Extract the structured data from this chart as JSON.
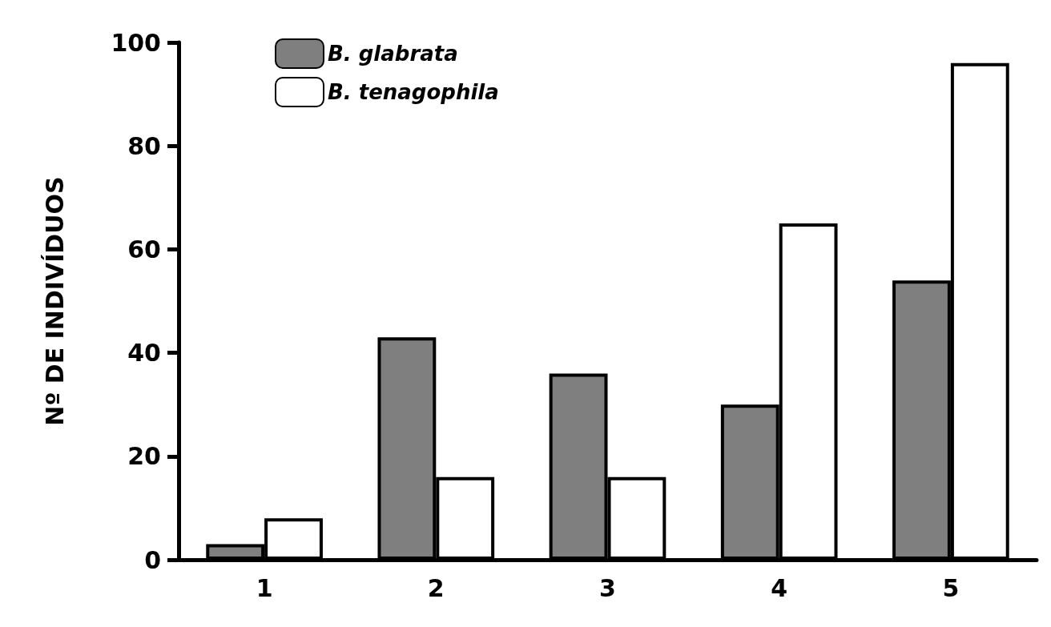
{
  "chart_data": {
    "type": "bar",
    "ylabel": "Nº DE INDIVÍDUOS",
    "categories": [
      "1",
      "2",
      "3",
      "4",
      "5"
    ],
    "series": [
      {
        "name": "B. glabrata",
        "color": "#7f7f7f",
        "values": [
          3,
          43,
          36,
          30,
          54
        ]
      },
      {
        "name": "B. tenagophila",
        "color": "#ffffff",
        "values": [
          8,
          16,
          16,
          65,
          96
        ]
      }
    ],
    "ylim": [
      0,
      100
    ],
    "yticks": [
      0,
      20,
      40,
      60,
      80,
      100
    ],
    "grid": false,
    "legend": "top left"
  }
}
